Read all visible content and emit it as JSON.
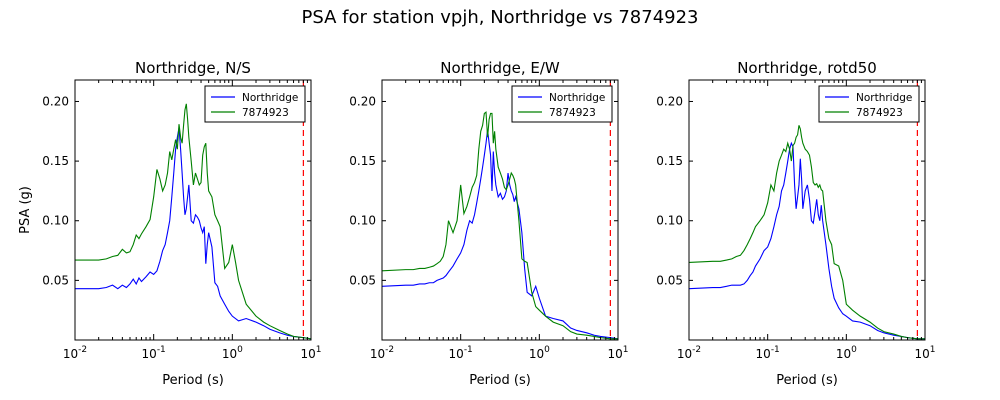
{
  "figure": {
    "title": "PSA for station vpjh, Northridge vs 7874923"
  },
  "colors": {
    "northridge": "#0000ff",
    "sim": "#008000",
    "limit_line": "#ff0000",
    "axes": "#000000"
  },
  "chart_data": [
    {
      "type": "line",
      "title": "Northridge, N/S",
      "xlabel": "Period (s)",
      "ylabel": "PSA (g)",
      "xscale": "log",
      "xlim": [
        0.01,
        10
      ],
      "ylim": [
        0,
        0.218
      ],
      "xticks": [
        "10^-2",
        "10^-1",
        "10^0",
        "10^1"
      ],
      "yticks": [
        0.05,
        0.1,
        0.15,
        0.2
      ],
      "legend_position": "top-right",
      "vline": 8,
      "series": [
        {
          "name": "Northridge",
          "color": "#0000ff",
          "x": [
            0.01,
            0.02,
            0.025,
            0.03,
            0.035,
            0.04,
            0.045,
            0.05,
            0.055,
            0.06,
            0.065,
            0.07,
            0.08,
            0.09,
            0.1,
            0.11,
            0.12,
            0.13,
            0.14,
            0.15,
            0.16,
            0.17,
            0.18,
            0.19,
            0.2,
            0.21,
            0.22,
            0.23,
            0.24,
            0.25,
            0.26,
            0.27,
            0.28,
            0.3,
            0.32,
            0.34,
            0.36,
            0.38,
            0.4,
            0.42,
            0.44,
            0.46,
            0.48,
            0.5,
            0.55,
            0.6,
            0.65,
            0.7,
            0.8,
            0.9,
            1.0,
            1.2,
            1.5,
            2.0,
            2.5,
            3.0,
            4.0,
            5.0,
            6.0,
            8.0,
            10.0
          ],
          "values": [
            0.043,
            0.043,
            0.044,
            0.046,
            0.043,
            0.046,
            0.044,
            0.047,
            0.051,
            0.047,
            0.052,
            0.049,
            0.053,
            0.057,
            0.055,
            0.058,
            0.066,
            0.075,
            0.08,
            0.09,
            0.1,
            0.12,
            0.14,
            0.16,
            0.17,
            0.178,
            0.16,
            0.14,
            0.12,
            0.105,
            0.11,
            0.12,
            0.13,
            0.1,
            0.098,
            0.105,
            0.103,
            0.1,
            0.094,
            0.09,
            0.095,
            0.064,
            0.08,
            0.09,
            0.078,
            0.048,
            0.045,
            0.037,
            0.03,
            0.024,
            0.02,
            0.016,
            0.018,
            0.015,
            0.012,
            0.009,
            0.006,
            0.004,
            0.003,
            0.002,
            0.001
          ]
        },
        {
          "name": "7874923",
          "color": "#008000",
          "x": [
            0.01,
            0.02,
            0.025,
            0.03,
            0.035,
            0.04,
            0.045,
            0.05,
            0.055,
            0.06,
            0.065,
            0.07,
            0.08,
            0.09,
            0.1,
            0.11,
            0.12,
            0.13,
            0.14,
            0.15,
            0.16,
            0.17,
            0.18,
            0.19,
            0.2,
            0.21,
            0.22,
            0.23,
            0.24,
            0.25,
            0.26,
            0.27,
            0.28,
            0.3,
            0.32,
            0.34,
            0.36,
            0.38,
            0.4,
            0.42,
            0.44,
            0.46,
            0.48,
            0.5,
            0.55,
            0.6,
            0.65,
            0.7,
            0.8,
            0.9,
            1.0,
            1.1,
            1.2,
            1.5,
            2.0,
            2.5,
            3.0,
            4.0,
            5.0,
            6.0,
            8.0,
            10.0
          ],
          "values": [
            0.067,
            0.067,
            0.068,
            0.07,
            0.071,
            0.076,
            0.073,
            0.074,
            0.08,
            0.088,
            0.085,
            0.089,
            0.095,
            0.101,
            0.12,
            0.143,
            0.135,
            0.125,
            0.13,
            0.14,
            0.158,
            0.151,
            0.16,
            0.168,
            0.16,
            0.181,
            0.17,
            0.165,
            0.18,
            0.193,
            0.198,
            0.185,
            0.17,
            0.15,
            0.13,
            0.14,
            0.135,
            0.13,
            0.132,
            0.155,
            0.162,
            0.165,
            0.14,
            0.125,
            0.12,
            0.105,
            0.1,
            0.095,
            0.06,
            0.065,
            0.08,
            0.065,
            0.05,
            0.03,
            0.02,
            0.015,
            0.012,
            0.008,
            0.005,
            0.003,
            0.002,
            0.001
          ]
        }
      ]
    },
    {
      "type": "line",
      "title": "Northridge, E/W",
      "xlabel": "Period (s)",
      "xscale": "log",
      "xlim": [
        0.01,
        10
      ],
      "ylim": [
        0,
        0.218
      ],
      "xticks": [
        "10^-2",
        "10^-1",
        "10^0",
        "10^1"
      ],
      "yticks": [
        0.05,
        0.1,
        0.15,
        0.2
      ],
      "legend_position": "top-right",
      "vline": 8,
      "series": [
        {
          "name": "Northridge",
          "color": "#0000ff",
          "x": [
            0.01,
            0.02,
            0.025,
            0.03,
            0.035,
            0.04,
            0.045,
            0.05,
            0.055,
            0.06,
            0.065,
            0.07,
            0.08,
            0.09,
            0.1,
            0.11,
            0.12,
            0.13,
            0.14,
            0.15,
            0.16,
            0.17,
            0.18,
            0.19,
            0.2,
            0.21,
            0.22,
            0.23,
            0.24,
            0.25,
            0.26,
            0.27,
            0.28,
            0.3,
            0.32,
            0.34,
            0.36,
            0.38,
            0.4,
            0.42,
            0.44,
            0.46,
            0.48,
            0.5,
            0.55,
            0.6,
            0.65,
            0.7,
            0.8,
            0.9,
            1.0,
            1.2,
            1.5,
            2.0,
            2.5,
            3.0,
            4.0,
            5.0,
            6.0,
            8.0,
            10.0
          ],
          "values": [
            0.045,
            0.046,
            0.046,
            0.047,
            0.047,
            0.048,
            0.048,
            0.05,
            0.051,
            0.052,
            0.054,
            0.057,
            0.062,
            0.068,
            0.073,
            0.08,
            0.092,
            0.1,
            0.098,
            0.105,
            0.115,
            0.125,
            0.135,
            0.145,
            0.155,
            0.165,
            0.176,
            0.165,
            0.155,
            0.125,
            0.158,
            0.14,
            0.13,
            0.12,
            0.123,
            0.118,
            0.12,
            0.125,
            0.14,
            0.13,
            0.125,
            0.122,
            0.116,
            0.12,
            0.11,
            0.09,
            0.06,
            0.04,
            0.037,
            0.045,
            0.035,
            0.02,
            0.018,
            0.016,
            0.01,
            0.008,
            0.006,
            0.004,
            0.003,
            0.002,
            0.001
          ]
        },
        {
          "name": "7874923",
          "color": "#008000",
          "x": [
            0.01,
            0.02,
            0.025,
            0.03,
            0.035,
            0.04,
            0.045,
            0.05,
            0.055,
            0.06,
            0.065,
            0.07,
            0.08,
            0.09,
            0.1,
            0.11,
            0.12,
            0.13,
            0.14,
            0.15,
            0.16,
            0.17,
            0.18,
            0.19,
            0.2,
            0.21,
            0.22,
            0.23,
            0.24,
            0.25,
            0.26,
            0.27,
            0.28,
            0.3,
            0.32,
            0.34,
            0.36,
            0.38,
            0.4,
            0.42,
            0.44,
            0.46,
            0.48,
            0.5,
            0.55,
            0.6,
            0.65,
            0.7,
            0.8,
            0.9,
            1.0,
            1.2,
            1.5,
            2.0,
            2.5,
            3.0,
            4.0,
            5.0,
            6.0,
            8.0,
            10.0
          ],
          "values": [
            0.058,
            0.059,
            0.059,
            0.06,
            0.06,
            0.061,
            0.062,
            0.064,
            0.066,
            0.07,
            0.08,
            0.1,
            0.09,
            0.1,
            0.13,
            0.106,
            0.112,
            0.12,
            0.128,
            0.132,
            0.138,
            0.16,
            0.175,
            0.18,
            0.19,
            0.191,
            0.17,
            0.185,
            0.19,
            0.19,
            0.165,
            0.175,
            0.16,
            0.145,
            0.14,
            0.135,
            0.128,
            0.126,
            0.13,
            0.135,
            0.14,
            0.138,
            0.135,
            0.13,
            0.1,
            0.068,
            0.066,
            0.065,
            0.04,
            0.028,
            0.025,
            0.02,
            0.015,
            0.012,
            0.007,
            0.005,
            0.004,
            0.003,
            0.002,
            0.001,
            0.001
          ]
        }
      ]
    },
    {
      "type": "line",
      "title": "Northridge, rotd50",
      "xlabel": "Period (s)",
      "xscale": "log",
      "xlim": [
        0.01,
        10
      ],
      "ylim": [
        0,
        0.218
      ],
      "xticks": [
        "10^-2",
        "10^-1",
        "10^0",
        "10^1"
      ],
      "yticks": [
        0.05,
        0.1,
        0.15,
        0.2
      ],
      "legend_position": "top-right",
      "vline": 8,
      "series": [
        {
          "name": "Northridge",
          "color": "#0000ff",
          "x": [
            0.01,
            0.02,
            0.025,
            0.03,
            0.035,
            0.04,
            0.045,
            0.05,
            0.055,
            0.06,
            0.065,
            0.07,
            0.08,
            0.09,
            0.1,
            0.11,
            0.12,
            0.13,
            0.14,
            0.15,
            0.16,
            0.17,
            0.18,
            0.19,
            0.2,
            0.21,
            0.22,
            0.23,
            0.24,
            0.25,
            0.26,
            0.27,
            0.28,
            0.3,
            0.32,
            0.34,
            0.36,
            0.38,
            0.4,
            0.42,
            0.44,
            0.46,
            0.48,
            0.5,
            0.55,
            0.6,
            0.65,
            0.7,
            0.8,
            0.9,
            1.0,
            1.2,
            1.5,
            2.0,
            2.5,
            3.0,
            4.0,
            5.0,
            6.0,
            8.0,
            10.0
          ],
          "values": [
            0.043,
            0.044,
            0.044,
            0.045,
            0.046,
            0.046,
            0.046,
            0.047,
            0.05,
            0.054,
            0.057,
            0.062,
            0.068,
            0.075,
            0.078,
            0.085,
            0.095,
            0.105,
            0.112,
            0.125,
            0.13,
            0.14,
            0.15,
            0.16,
            0.165,
            0.162,
            0.13,
            0.11,
            0.12,
            0.13,
            0.152,
            0.135,
            0.11,
            0.125,
            0.13,
            0.118,
            0.1,
            0.098,
            0.108,
            0.118,
            0.105,
            0.1,
            0.113,
            0.1,
            0.08,
            0.06,
            0.045,
            0.035,
            0.027,
            0.022,
            0.02,
            0.016,
            0.015,
            0.012,
            0.008,
            0.006,
            0.004,
            0.003,
            0.002,
            0.001,
            0.001
          ]
        },
        {
          "name": "7874923",
          "color": "#008000",
          "x": [
            0.01,
            0.02,
            0.025,
            0.03,
            0.035,
            0.04,
            0.045,
            0.05,
            0.055,
            0.06,
            0.065,
            0.07,
            0.08,
            0.09,
            0.1,
            0.11,
            0.12,
            0.13,
            0.14,
            0.15,
            0.16,
            0.17,
            0.18,
            0.19,
            0.2,
            0.21,
            0.22,
            0.23,
            0.24,
            0.25,
            0.26,
            0.27,
            0.28,
            0.3,
            0.32,
            0.34,
            0.36,
            0.38,
            0.4,
            0.42,
            0.44,
            0.46,
            0.48,
            0.5,
            0.55,
            0.6,
            0.65,
            0.7,
            0.8,
            0.9,
            1.0,
            1.2,
            1.5,
            2.0,
            2.5,
            3.0,
            4.0,
            5.0,
            6.0,
            8.0,
            10.0
          ],
          "values": [
            0.065,
            0.066,
            0.066,
            0.067,
            0.068,
            0.07,
            0.071,
            0.075,
            0.08,
            0.085,
            0.09,
            0.095,
            0.1,
            0.105,
            0.115,
            0.13,
            0.125,
            0.14,
            0.15,
            0.155,
            0.16,
            0.158,
            0.165,
            0.16,
            0.15,
            0.163,
            0.165,
            0.17,
            0.172,
            0.18,
            0.177,
            0.17,
            0.165,
            0.16,
            0.158,
            0.155,
            0.145,
            0.132,
            0.13,
            0.131,
            0.128,
            0.13,
            0.126,
            0.125,
            0.1,
            0.085,
            0.08,
            0.064,
            0.062,
            0.05,
            0.03,
            0.025,
            0.02,
            0.015,
            0.01,
            0.007,
            0.005,
            0.003,
            0.002,
            0.001,
            0.001
          ]
        }
      ]
    }
  ]
}
